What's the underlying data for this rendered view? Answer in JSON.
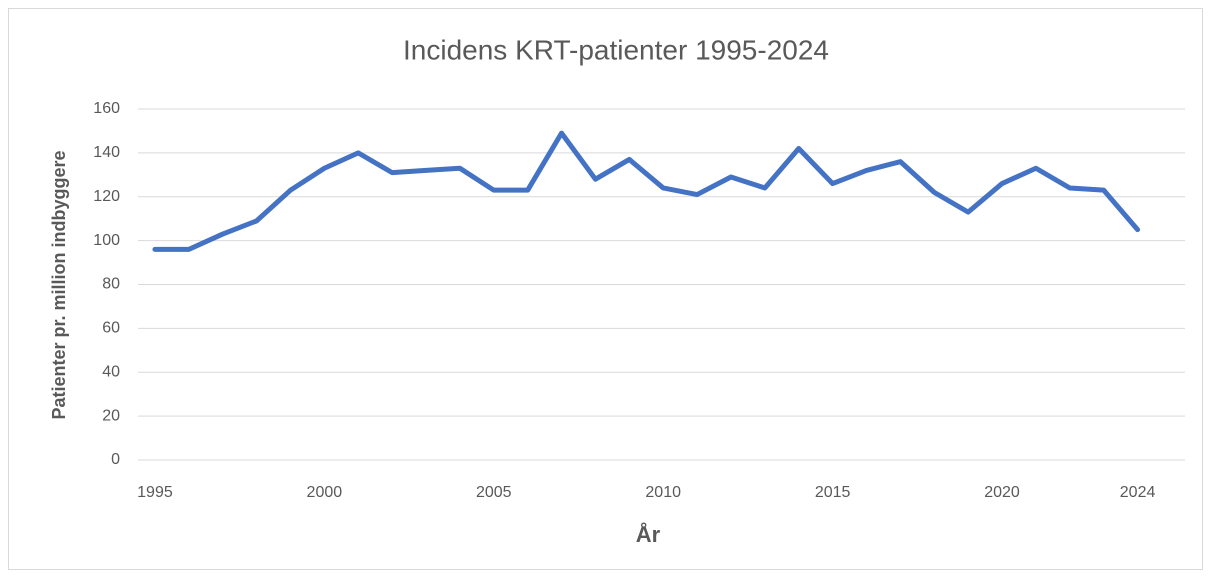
{
  "chart_data": {
    "type": "line",
    "title": "Incidens KRT-patienter 1995-2024",
    "x_label": "År",
    "y_label": "Patienter pr. million  indbyggere",
    "x": [
      1995,
      1996,
      1997,
      1998,
      1999,
      2000,
      2001,
      2002,
      2003,
      2004,
      2005,
      2006,
      2007,
      2008,
      2009,
      2010,
      2011,
      2012,
      2013,
      2014,
      2015,
      2016,
      2017,
      2018,
      2019,
      2020,
      2021,
      2022,
      2023,
      2024
    ],
    "series": [
      {
        "name": "Incidens",
        "color": "#4472c4",
        "values": [
          96,
          96,
          103,
          109,
          123,
          133,
          140,
          131,
          132,
          133,
          123,
          123,
          149,
          128,
          137,
          124,
          121,
          129,
          124,
          142,
          126,
          132,
          136,
          122,
          113,
          126,
          133,
          124,
          123,
          105
        ]
      }
    ],
    "xlim": [
      1994.5,
      2025.4
    ],
    "xticks": [
      1995,
      2000,
      2005,
      2010,
      2015,
      2020,
      2024
    ],
    "ylim": [
      0,
      160
    ],
    "yticks": [
      0,
      20,
      40,
      60,
      80,
      100,
      120,
      140,
      160
    ],
    "grid": true
  }
}
